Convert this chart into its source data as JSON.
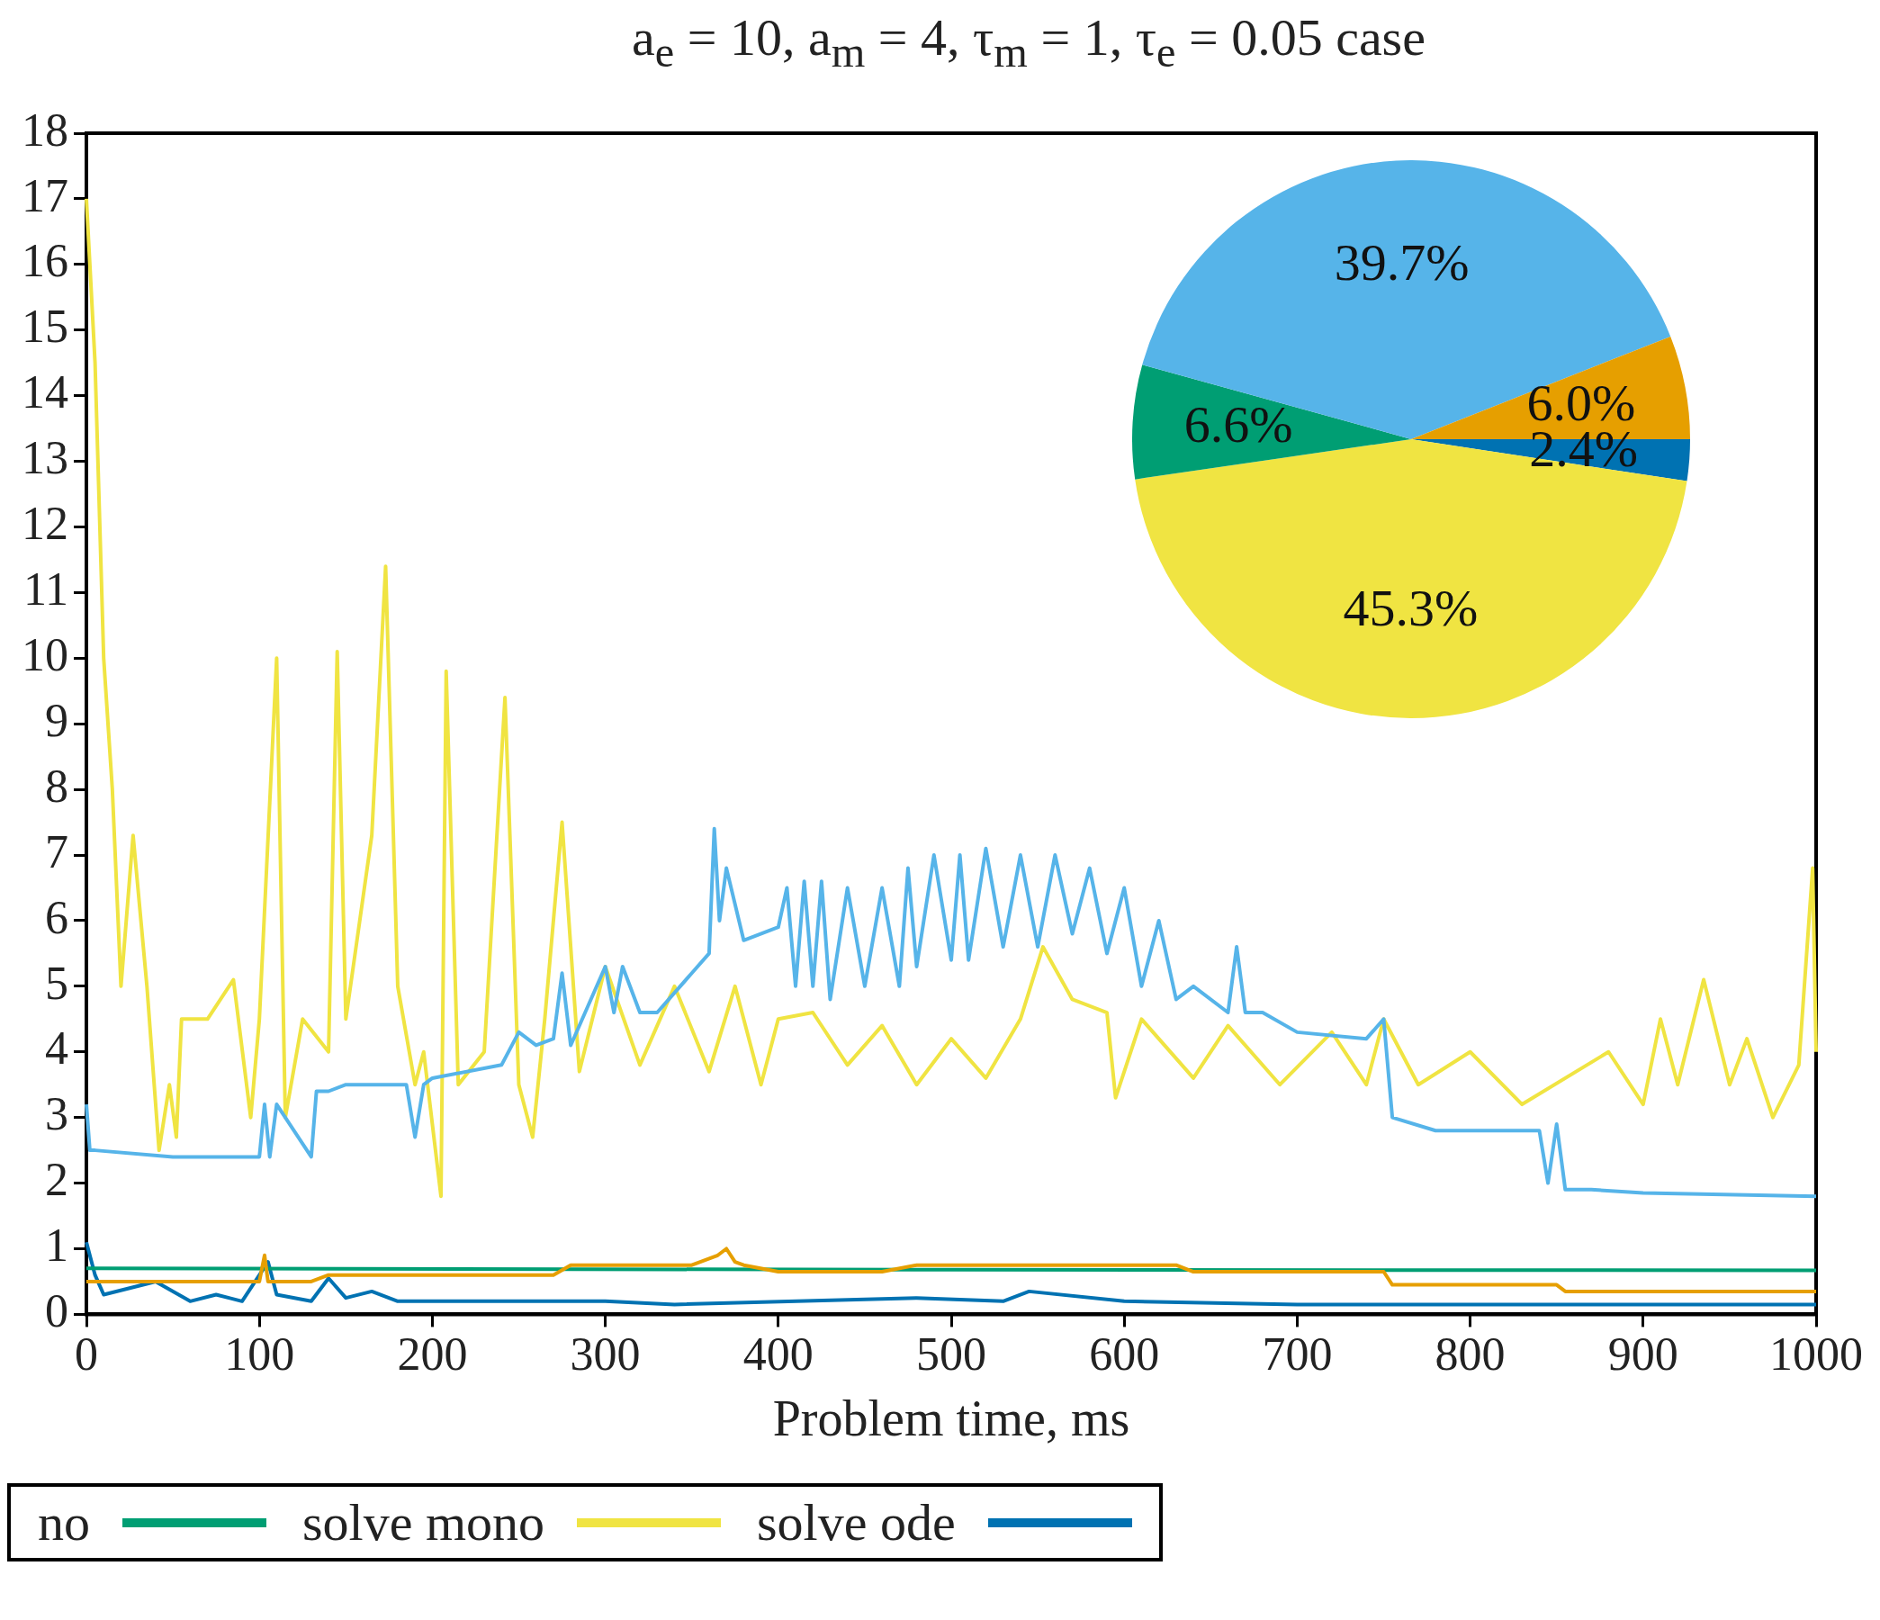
{
  "chart_data": [
    {
      "type": "line",
      "title": "a$_{e}$ = 10, a$_{m}$ = 4, τ$_{m}$ = 1, τ$_{e}$ = 0.05 case",
      "xlabel": "Problem time, ms",
      "xlim": [
        0,
        1000
      ],
      "xticks": [
        0,
        100,
        200,
        300,
        400,
        500,
        600,
        700,
        800,
        900,
        1000
      ],
      "ylim": [
        0,
        18
      ],
      "yticks": [
        0,
        1,
        2,
        3,
        4,
        5,
        6,
        7,
        8,
        9,
        10,
        11,
        12,
        13,
        14,
        15,
        16,
        17,
        18
      ],
      "legend": "bottom",
      "marker": "none",
      "line_style": "solid",
      "series": [
        {
          "color": "#56b4e9",
          "x": [
            0,
            2,
            5,
            50,
            100,
            103,
            106,
            110,
            130,
            133,
            140,
            150,
            185,
            190,
            195,
            200,
            240,
            250,
            260,
            270,
            275,
            280,
            300,
            305,
            310,
            320,
            330,
            340,
            350,
            360,
            363,
            366,
            370,
            380,
            400,
            405,
            410,
            415,
            420,
            425,
            430,
            440,
            450,
            460,
            470,
            475,
            480,
            490,
            500,
            505,
            510,
            520,
            530,
            540,
            550,
            560,
            570,
            580,
            590,
            600,
            610,
            620,
            630,
            640,
            660,
            665,
            670,
            675,
            680,
            700,
            740,
            750,
            755,
            780,
            840,
            845,
            850,
            855,
            870,
            900,
            1000
          ],
          "values": [
            3.2,
            2.5,
            2.5,
            2.4,
            2.4,
            3.2,
            2.4,
            3.2,
            2.4,
            3.4,
            3.4,
            3.5,
            3.5,
            2.7,
            3.5,
            3.6,
            3.8,
            4.3,
            4.1,
            4.2,
            5.2,
            4.1,
            5.3,
            4.6,
            5.3,
            4.6,
            4.6,
            4.9,
            5.2,
            5.5,
            7.4,
            6.0,
            6.8,
            5.7,
            5.9,
            6.5,
            5.0,
            6.6,
            5.0,
            6.6,
            4.8,
            6.5,
            5.0,
            6.5,
            5.0,
            6.8,
            5.3,
            7.0,
            5.4,
            7.0,
            5.4,
            7.1,
            5.6,
            7.0,
            5.6,
            7.0,
            5.8,
            6.8,
            5.5,
            6.5,
            5.0,
            6.0,
            4.8,
            5.0,
            4.6,
            5.6,
            4.6,
            4.6,
            4.6,
            4.3,
            4.2,
            4.5,
            3.0,
            2.8,
            2.8,
            2.0,
            2.9,
            1.9,
            1.9,
            1.85,
            1.8
          ]
        },
        {
          "color": "#e69f00",
          "x": [
            0,
            100,
            103,
            105,
            130,
            140,
            270,
            280,
            350,
            365,
            370,
            375,
            380,
            400,
            460,
            480,
            630,
            640,
            750,
            755,
            850,
            855,
            1000
          ],
          "values": [
            0.5,
            0.5,
            0.9,
            0.5,
            0.5,
            0.6,
            0.6,
            0.75,
            0.75,
            0.9,
            1.0,
            0.8,
            0.75,
            0.65,
            0.65,
            0.75,
            0.75,
            0.65,
            0.65,
            0.45,
            0.45,
            0.35,
            0.35
          ]
        },
        {
          "name": "no",
          "color": "#009e73",
          "x": [
            0,
            500,
            1000
          ],
          "values": [
            0.7,
            0.68,
            0.67
          ]
        },
        {
          "name": "solve mono",
          "color": "#f0e442",
          "x": [
            0,
            5,
            10,
            15,
            20,
            27,
            35,
            42,
            48,
            52,
            55,
            70,
            85,
            95,
            100,
            110,
            115,
            125,
            140,
            145,
            150,
            165,
            173,
            180,
            190,
            195,
            205,
            208,
            215,
            230,
            242,
            250,
            258,
            265,
            275,
            285,
            300,
            320,
            340,
            360,
            375,
            390,
            400,
            420,
            440,
            460,
            480,
            500,
            520,
            540,
            553,
            570,
            590,
            595,
            610,
            640,
            660,
            690,
            720,
            740,
            750,
            770,
            800,
            830,
            880,
            900,
            910,
            920,
            935,
            950,
            960,
            975,
            990,
            998,
            1000
          ],
          "values": [
            17,
            14.5,
            10,
            8,
            5,
            7.3,
            5,
            2.5,
            3.5,
            2.7,
            4.5,
            4.5,
            5.1,
            3.0,
            4.5,
            10,
            3,
            4.5,
            4,
            10.1,
            4.5,
            7.3,
            11.4,
            5,
            3.5,
            4,
            1.8,
            9.8,
            3.5,
            4,
            9.4,
            3.5,
            2.7,
            4.5,
            7.5,
            3.7,
            5.3,
            3.8,
            5.0,
            3.7,
            5.0,
            3.5,
            4.5,
            4.6,
            3.8,
            4.4,
            3.5,
            4.2,
            3.6,
            4.5,
            5.6,
            4.8,
            4.6,
            3.3,
            4.5,
            3.6,
            4.4,
            3.5,
            4.3,
            3.5,
            4.5,
            3.5,
            4.0,
            3.2,
            4.0,
            3.2,
            4.5,
            3.5,
            5.1,
            3.5,
            4.2,
            3.0,
            3.8,
            6.8,
            4.0
          ]
        },
        {
          "name": "solve ode",
          "color": "#0072b2",
          "x": [
            0,
            5,
            10,
            40,
            60,
            75,
            90,
            105,
            110,
            130,
            140,
            150,
            165,
            180,
            300,
            340,
            480,
            530,
            545,
            600,
            700,
            1000
          ],
          "values": [
            1.1,
            0.6,
            0.3,
            0.5,
            0.2,
            0.3,
            0.2,
            0.8,
            0.3,
            0.2,
            0.55,
            0.25,
            0.35,
            0.2,
            0.2,
            0.15,
            0.25,
            0.2,
            0.35,
            0.2,
            0.15,
            0.15
          ]
        }
      ]
    },
    {
      "type": "pie",
      "categories": [
        null,
        null,
        null,
        null,
        null
      ],
      "values": [
        2.4,
        45.3,
        6.6,
        39.7,
        6.0
      ],
      "colors": [
        "#0072b2",
        "#f0e442",
        "#009e73",
        "#56b4e9",
        "#e69f00"
      ],
      "value_labels": [
        "2.4%",
        "45.3%",
        "6.6%",
        "39.7%",
        "6.0%"
      ]
    }
  ]
}
